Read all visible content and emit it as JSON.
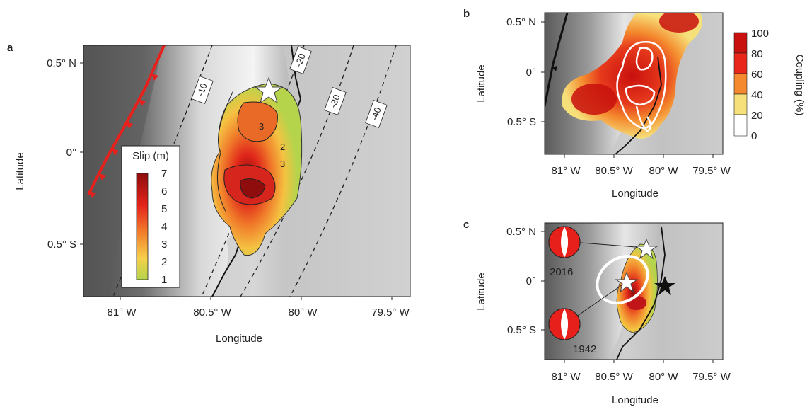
{
  "panel_a": {
    "letter": "a",
    "xlabel": "Longitude",
    "ylabel": "Latitude",
    "xticks": [
      "81° W",
      "80.5° W",
      "80° W",
      "79.5° W"
    ],
    "yticks": [
      "0.5° N",
      "0°",
      "0.5° S"
    ],
    "depth_contours": [
      "-10",
      "-20",
      "-30",
      "-40"
    ],
    "slip_contours": [
      "3",
      "3",
      "2"
    ],
    "legend_title": "Slip (m)",
    "legend_ticks": [
      "7",
      "6",
      "5",
      "4",
      "3",
      "2",
      "1"
    ]
  },
  "panel_b": {
    "letter": "b",
    "xlabel": "Longitude",
    "ylabel": "Latitude",
    "xticks": [
      "81° W",
      "80.5° W",
      "80° W",
      "79.5° W"
    ],
    "yticks": [
      "0.5° N",
      "0°",
      "0.5° S"
    ],
    "colorbar_title": "Coupling (%)",
    "colorbar_ticks": [
      "100",
      "80",
      "60",
      "40",
      "20",
      "0"
    ]
  },
  "panel_c": {
    "letter": "c",
    "xlabel": "Longitude",
    "ylabel": "Latitude",
    "xticks": [
      "81° W",
      "80.5° W",
      "80° W",
      "79.5° W"
    ],
    "yticks": [
      "0.5° N",
      "0°",
      "0.5° S"
    ],
    "events": [
      "2016",
      "1942"
    ]
  },
  "colors": {
    "trench": "#e8201c",
    "slip_low": "#b5d44c",
    "slip_high": "#8f0d0d",
    "coupling_high": "#c8100e",
    "ocean_light": "#f2f2f2",
    "relief_dark": "#555555"
  }
}
